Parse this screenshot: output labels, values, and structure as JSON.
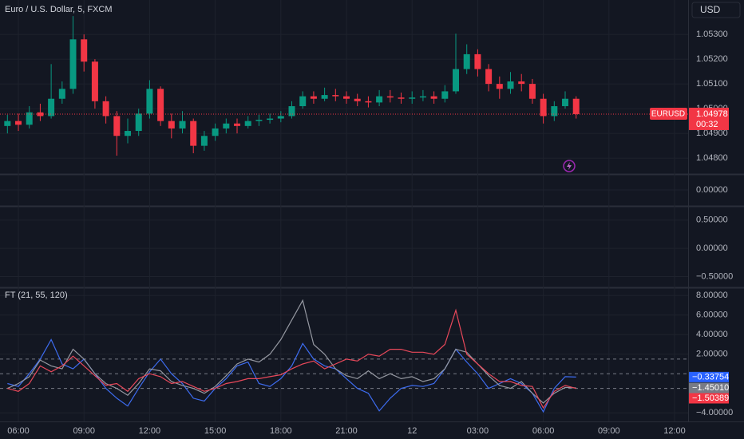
{
  "chart_data": [
    {
      "type": "candlestick",
      "title": "Euro / U.S. Dollar, 5, FXCM",
      "currency": "USD",
      "up_color": "#089981",
      "down_color": "#f23645",
      "grid": true,
      "xlim": [
        5.16,
        36.62
      ],
      "ylim": [
        1.04736,
        1.05439
      ],
      "yticks": [
        {
          "value": 1.048,
          "label": "1.04800"
        },
        {
          "value": 1.049,
          "label": "1.04900"
        },
        {
          "value": 1.05,
          "label": "1.05000"
        },
        {
          "value": 1.051,
          "label": "1.05100"
        },
        {
          "value": 1.052,
          "label": "1.05200"
        },
        {
          "value": 1.053,
          "label": "1.05300"
        }
      ],
      "last_price": {
        "name": "EURUSD",
        "value": 1.04978,
        "countdown": "00:32",
        "color": "#f23645"
      },
      "x": [
        5.5,
        6,
        6.5,
        7,
        7.5,
        8,
        8.5,
        9,
        9.5,
        10,
        10.5,
        11,
        11.5,
        12,
        12.5,
        13,
        13.5,
        14,
        14.5,
        15,
        15.5,
        16,
        16.5,
        17,
        17.5,
        18,
        18.5,
        19,
        19.5,
        20,
        20.5,
        21,
        21.5,
        22,
        22.5,
        23,
        23.5,
        24,
        24.5,
        25,
        25.5,
        26,
        26.5,
        27,
        27.5,
        28,
        28.5,
        29,
        29.5,
        30,
        30.5,
        31,
        31.5
      ],
      "open": [
        1.0493,
        1.0495,
        1.04935,
        1.04985,
        1.0497,
        1.0504,
        1.0508,
        1.0528,
        1.0519,
        1.0503,
        1.0497,
        1.0489,
        1.0491,
        1.0498,
        1.0508,
        1.0495,
        1.0492,
        1.0495,
        1.0485,
        1.0489,
        1.0492,
        1.0494,
        1.0493,
        1.0495,
        1.04955,
        1.0496,
        1.0497,
        1.0501,
        1.0505,
        1.0504,
        1.05055,
        1.0505,
        1.0504,
        1.0503,
        1.05025,
        1.0505,
        1.05045,
        1.0504,
        1.05045,
        1.0505,
        1.0504,
        1.0507,
        1.0516,
        1.0522,
        1.0516,
        1.051,
        1.0508,
        1.0511,
        1.051,
        1.0504,
        1.0497,
        1.0501,
        1.0504
      ],
      "high": [
        1.04975,
        1.0498,
        1.0501,
        1.0502,
        1.0518,
        1.0511,
        1.05374,
        1.053,
        1.052,
        1.0505,
        1.0499,
        1.0496,
        1.05,
        1.05115,
        1.0509,
        1.0498,
        1.0499,
        1.0496,
        1.0491,
        1.0494,
        1.0496,
        1.0496,
        1.0497,
        1.04975,
        1.0498,
        1.0499,
        1.0503,
        1.0507,
        1.0507,
        1.05085,
        1.0508,
        1.0507,
        1.0506,
        1.0505,
        1.05075,
        1.05075,
        1.05065,
        1.0507,
        1.05075,
        1.0507,
        1.05095,
        1.05303,
        1.0526,
        1.0524,
        1.0518,
        1.0513,
        1.05148,
        1.0514,
        1.0512,
        1.0506,
        1.0503,
        1.0507,
        1.0505
      ],
      "low": [
        1.049,
        1.0491,
        1.0492,
        1.0495,
        1.0496,
        1.0502,
        1.0506,
        1.0515,
        1.05,
        1.0494,
        1.0481,
        1.0486,
        1.0489,
        1.0496,
        1.0493,
        1.0488,
        1.049,
        1.0482,
        1.0483,
        1.0487,
        1.049,
        1.049,
        1.0492,
        1.0493,
        1.0494,
        1.04945,
        1.0496,
        1.05,
        1.0502,
        1.0503,
        1.0503,
        1.0502,
        1.0501,
        1.05005,
        1.0501,
        1.05025,
        1.0502,
        1.0502,
        1.0503,
        1.0502,
        1.05025,
        1.0506,
        1.0514,
        1.0513,
        1.0507,
        1.0504,
        1.0506,
        1.0507,
        1.0502,
        1.0494,
        1.0495,
        1.05,
        1.0496
      ],
      "close": [
        1.0495,
        1.04935,
        1.04985,
        1.0497,
        1.0504,
        1.0508,
        1.0528,
        1.0519,
        1.0503,
        1.0497,
        1.0489,
        1.0491,
        1.0498,
        1.0508,
        1.0495,
        1.0492,
        1.0495,
        1.0485,
        1.0489,
        1.0492,
        1.0494,
        1.0493,
        1.0495,
        1.04955,
        1.0496,
        1.0497,
        1.0501,
        1.0505,
        1.0504,
        1.05055,
        1.0505,
        1.0504,
        1.0503,
        1.05025,
        1.0505,
        1.05045,
        1.0504,
        1.05045,
        1.0505,
        1.0504,
        1.0507,
        1.0516,
        1.0522,
        1.0516,
        1.051,
        1.0508,
        1.0511,
        1.051,
        1.0504,
        1.0497,
        1.0501,
        1.0504,
        1.04978
      ]
    },
    {
      "type": "empty",
      "ylim": [
        -0.5,
        0.5
      ],
      "yticks": [
        {
          "value": 0,
          "label": "0.00000"
        }
      ]
    },
    {
      "type": "empty",
      "ylim": [
        -0.69,
        0.75
      ],
      "yticks": [
        {
          "value": 0.5,
          "label": "0.50000"
        },
        {
          "value": 0,
          "label": "0.00000"
        },
        {
          "value": -0.5,
          "label": "−0.50000"
        }
      ]
    },
    {
      "type": "line",
      "title": "FT (21, 55, 120)",
      "grid": true,
      "xlim": [
        5.16,
        36.62
      ],
      "ylim": [
        -4.88,
        8.84
      ],
      "yticks": [
        {
          "value": 8,
          "label": "8.00000"
        },
        {
          "value": 6,
          "label": "6.00000"
        },
        {
          "value": 4,
          "label": "4.00000"
        },
        {
          "value": 2,
          "label": "2.00000"
        },
        {
          "value": -4,
          "label": "−4.00000"
        }
      ],
      "xticks": [
        {
          "value": 6,
          "label": "06:00"
        },
        {
          "value": 9,
          "label": "09:00"
        },
        {
          "value": 12,
          "label": "12:00"
        },
        {
          "value": 15,
          "label": "15:00"
        },
        {
          "value": 18,
          "label": "18:00"
        },
        {
          "value": 21,
          "label": "21:00"
        },
        {
          "value": 24,
          "label": "12"
        },
        {
          "value": 27,
          "label": "03:00"
        },
        {
          "value": 30,
          "label": "06:00"
        },
        {
          "value": 33,
          "label": "09:00"
        },
        {
          "value": 36,
          "label": "12:00"
        }
      ],
      "levels": [
        1.5,
        0,
        -1.5
      ],
      "x": [
        5.5,
        6,
        6.5,
        7,
        7.5,
        8,
        8.5,
        9,
        9.5,
        10,
        10.5,
        11,
        11.5,
        12,
        12.5,
        13,
        13.5,
        14,
        14.5,
        15,
        15.5,
        16,
        16.5,
        17,
        17.5,
        18,
        18.5,
        19,
        19.5,
        20,
        20.5,
        21,
        21.5,
        22,
        22.5,
        23,
        23.5,
        24,
        24.5,
        25,
        25.5,
        26,
        26.5,
        27,
        27.5,
        28,
        28.5,
        29,
        29.5,
        30,
        30.5,
        31,
        31.5
      ],
      "series": [
        {
          "color": "#3d6cf0",
          "label_color": "#2962ff",
          "values": [
            -1.0,
            -1.3,
            0,
            1.5,
            3.5,
            1.0,
            0.5,
            1.5,
            0,
            -1.5,
            -2.5,
            -3.3,
            -1.5,
            0.2,
            1.5,
            0,
            -1.0,
            -2.5,
            -2.8,
            -1.5,
            -0.5,
            0.8,
            1.2,
            -1.0,
            -1.3,
            -0.5,
            0.8,
            3.1,
            1.5,
            0.8,
            0.5,
            -0.5,
            -1.5,
            -2.0,
            -3.8,
            -2.5,
            -1.5,
            -1.2,
            -1.3,
            -1.0,
            0.5,
            2.5,
            1.2,
            0,
            -1.5,
            -1.0,
            -0.5,
            -1.0,
            -2.0,
            -3.9,
            -1.5,
            -0.3,
            -0.33754
          ],
          "value_labels": [
            null,
            null,
            null,
            null,
            null,
            null,
            null,
            null,
            null,
            null,
            null,
            null,
            null,
            null,
            null,
            null,
            null,
            null,
            null,
            null,
            null,
            null,
            null,
            null,
            null,
            null,
            null,
            null,
            null,
            null,
            null,
            null,
            null,
            null,
            null,
            null,
            null,
            null,
            null,
            null,
            null,
            null,
            null,
            null,
            null,
            null,
            null,
            null,
            null,
            null,
            null,
            null,
            "−0.33754"
          ]
        },
        {
          "color": "#9598a1",
          "label_color": "#787b86",
          "values": [
            -1.5,
            -1.0,
            -0.3,
            1.4,
            0.8,
            0.5,
            2.5,
            1.5,
            0,
            -1.0,
            -1.5,
            -2.2,
            -1.0,
            0.5,
            0.3,
            -0.8,
            -1.2,
            -1.5,
            -2.0,
            -1.3,
            -0.2,
            1.0,
            1.5,
            1.2,
            2.0,
            3.5,
            5.5,
            7.5,
            3.0,
            2.0,
            0.5,
            -0.2,
            -0.5,
            0.3,
            -0.5,
            0,
            -0.5,
            -0.3,
            -0.8,
            -0.5,
            0.5,
            2.5,
            2.2,
            1.0,
            -0.2,
            -1.2,
            -1.5,
            -0.8,
            -2.0,
            -3.0,
            -2.0,
            -1.4,
            -1.4501
          ],
          "value_labels": [
            null,
            null,
            null,
            null,
            null,
            null,
            null,
            null,
            null,
            null,
            null,
            null,
            null,
            null,
            null,
            null,
            null,
            null,
            null,
            null,
            null,
            null,
            null,
            null,
            null,
            null,
            null,
            null,
            null,
            null,
            null,
            null,
            null,
            null,
            null,
            null,
            null,
            null,
            null,
            null,
            null,
            null,
            null,
            null,
            null,
            null,
            null,
            null,
            null,
            null,
            null,
            null,
            "−1.45010"
          ]
        },
        {
          "color": "#e8485a",
          "label_color": "#f23645",
          "values": [
            -1.5,
            -1.8,
            -1.0,
            0.8,
            0.2,
            0.8,
            1.8,
            0.8,
            -0.2,
            -1.2,
            -1.0,
            -1.8,
            -0.5,
            0.0,
            -0.3,
            -1.0,
            -0.8,
            -1.3,
            -1.8,
            -1.5,
            -1.0,
            -0.8,
            -0.5,
            -0.5,
            -0.3,
            -0.1,
            0.5,
            1.0,
            1.3,
            0.5,
            1.0,
            1.5,
            1.3,
            2.0,
            1.8,
            2.5,
            2.5,
            2.2,
            2.2,
            2.0,
            3.0,
            6.5,
            2.0,
            1.0,
            0.0,
            -0.8,
            -0.8,
            -1.2,
            -1.3,
            -3.5,
            -1.8,
            -1.2,
            -1.50389
          ],
          "value_labels": [
            null,
            null,
            null,
            null,
            null,
            null,
            null,
            null,
            null,
            null,
            null,
            null,
            null,
            null,
            null,
            null,
            null,
            null,
            null,
            null,
            null,
            null,
            null,
            null,
            null,
            null,
            null,
            null,
            null,
            null,
            null,
            null,
            null,
            null,
            null,
            null,
            null,
            null,
            null,
            null,
            null,
            null,
            null,
            null,
            null,
            null,
            null,
            null,
            null,
            null,
            null,
            null,
            "−1.50389"
          ]
        }
      ]
    }
  ]
}
